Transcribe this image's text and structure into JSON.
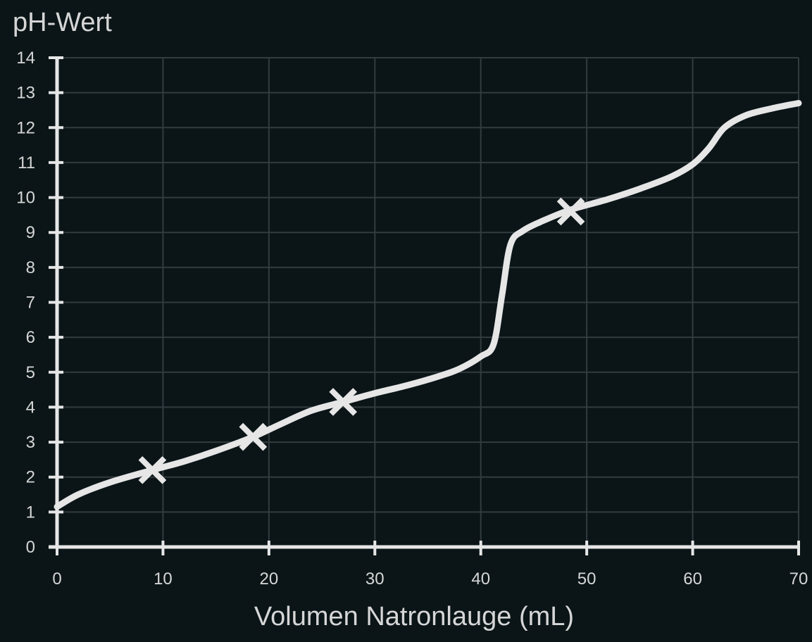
{
  "chart_data": {
    "type": "line",
    "title": "",
    "xlabel": "Volumen Natronlauge (mL)",
    "ylabel": "pH-Wert",
    "xlim": [
      0,
      70
    ],
    "ylim": [
      0,
      14
    ],
    "x_ticks": [
      0,
      10,
      20,
      30,
      40,
      50,
      60,
      70
    ],
    "y_ticks": [
      0,
      1,
      2,
      3,
      4,
      5,
      6,
      7,
      8,
      9,
      10,
      11,
      12,
      13,
      14
    ],
    "grid": true,
    "legend": "none",
    "series": [
      {
        "x": [
          0,
          2,
          5,
          9,
          12,
          15,
          18.5,
          21,
          24,
          27,
          30,
          33,
          36,
          38,
          40,
          41.2,
          42,
          42.8,
          44,
          46,
          48.5,
          52,
          55,
          58,
          60,
          61.5,
          63,
          65,
          67.5,
          70
        ],
        "y": [
          1.15,
          1.5,
          1.85,
          2.2,
          2.45,
          2.75,
          3.15,
          3.5,
          3.9,
          4.15,
          4.4,
          4.62,
          4.88,
          5.1,
          5.45,
          5.8,
          7.2,
          8.65,
          9.05,
          9.35,
          9.65,
          9.95,
          10.25,
          10.6,
          10.95,
          11.4,
          12.0,
          12.35,
          12.55,
          12.7
        ]
      }
    ],
    "markers": {
      "symbol": "x",
      "x": [
        9,
        18.5,
        27,
        48.5
      ],
      "y": [
        2.2,
        3.15,
        4.15,
        9.6
      ]
    },
    "colors": {
      "background": "#0b1518",
      "grid": "#323b3e",
      "axis": "#e6e6e6",
      "line": "#e6e6e6",
      "text": "#d6d6d6"
    }
  }
}
